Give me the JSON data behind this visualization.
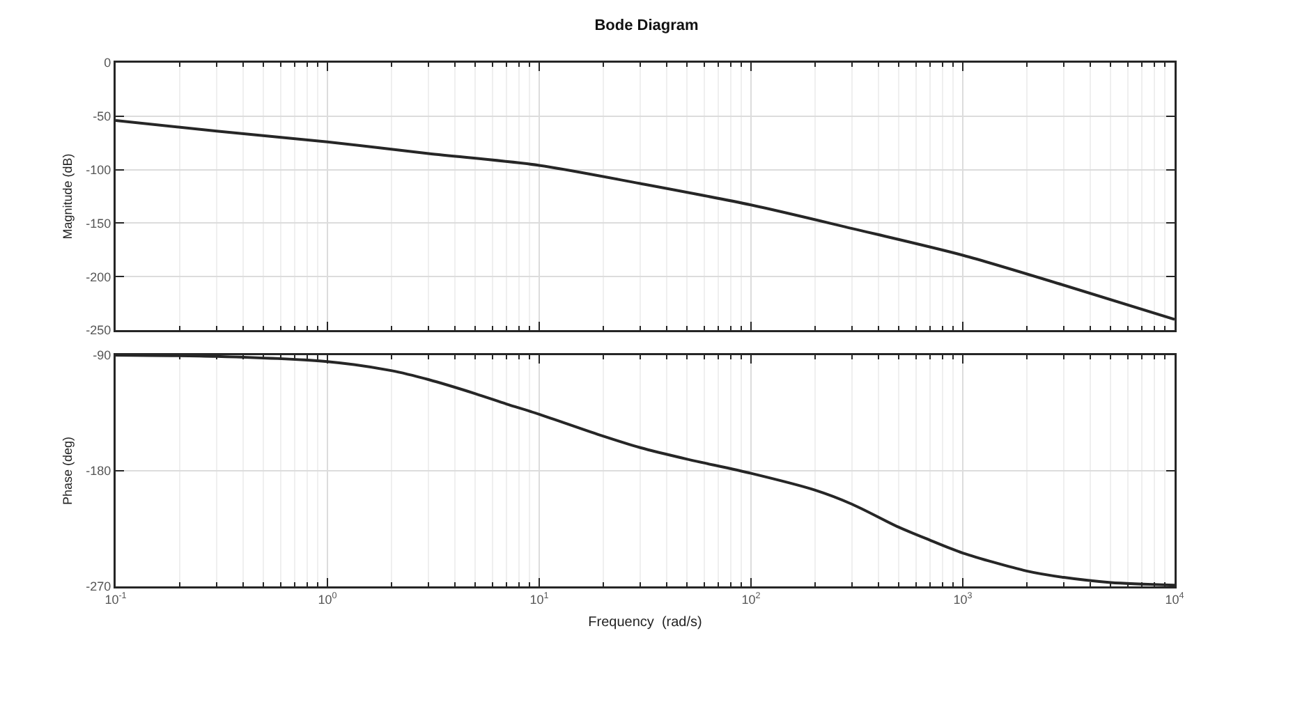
{
  "chart_data": [
    {
      "type": "line",
      "title": "Bode Diagram",
      "ylabel": "Magnitude (dB)",
      "x": [
        0.1,
        0.3,
        1,
        3,
        10,
        30,
        100,
        300,
        1000,
        3000,
        10000
      ],
      "series": [
        {
          "color": "#262626",
          "values": [
            -54,
            -64,
            -74,
            -85,
            -96,
            -113,
            -133,
            -155,
            -180,
            -208,
            -240
          ]
        }
      ],
      "xlim": [
        0.1,
        10000
      ],
      "xticks": [
        {
          "value": 0.1,
          "label": null
        },
        {
          "value": 1,
          "label": null
        },
        {
          "value": 10,
          "label": null
        },
        {
          "value": 100,
          "label": null
        },
        {
          "value": 1000,
          "label": null
        },
        {
          "value": 10000,
          "label": null
        }
      ],
      "ylim": [
        -250,
        0
      ],
      "yticks": [
        -250,
        -200,
        -150,
        -100,
        -50,
        0
      ],
      "log": "x",
      "grid": true,
      "tick_labels": "y",
      "line_style": "solid"
    },
    {
      "type": "line",
      "xlabel": "Frequency  (rad/s)",
      "ylabel": "Phase (deg)",
      "x": [
        0.1,
        0.3,
        1,
        2,
        3,
        5,
        7,
        10,
        20,
        30,
        50,
        100,
        200,
        300,
        500,
        700,
        1000,
        2000,
        3000,
        5000,
        10000
      ],
      "series": [
        {
          "color": "#262626",
          "values": [
            -90,
            -91,
            -95,
            -102,
            -109,
            -120,
            -128,
            -136,
            -153,
            -162,
            -171,
            -182,
            -195,
            -206,
            -224,
            -234,
            -244,
            -258,
            -263,
            -267,
            -269
          ]
        }
      ],
      "xlim": [
        0.1,
        10000
      ],
      "xticks": [
        {
          "value": 0.1,
          "label": "10$^{-1}$"
        },
        {
          "value": 1,
          "label": "10$^{0}$"
        },
        {
          "value": 10,
          "label": "10$^{1}$"
        },
        {
          "value": 100,
          "label": "10$^{2}$"
        },
        {
          "value": 1000,
          "label": "10$^{3}$"
        },
        {
          "value": 10000,
          "label": "10$^{4}$"
        }
      ],
      "ylim": [
        -270,
        -90
      ],
      "yticks": [
        -270,
        -180,
        -90
      ],
      "log": "x",
      "grid": true,
      "line_style": "solid"
    }
  ]
}
